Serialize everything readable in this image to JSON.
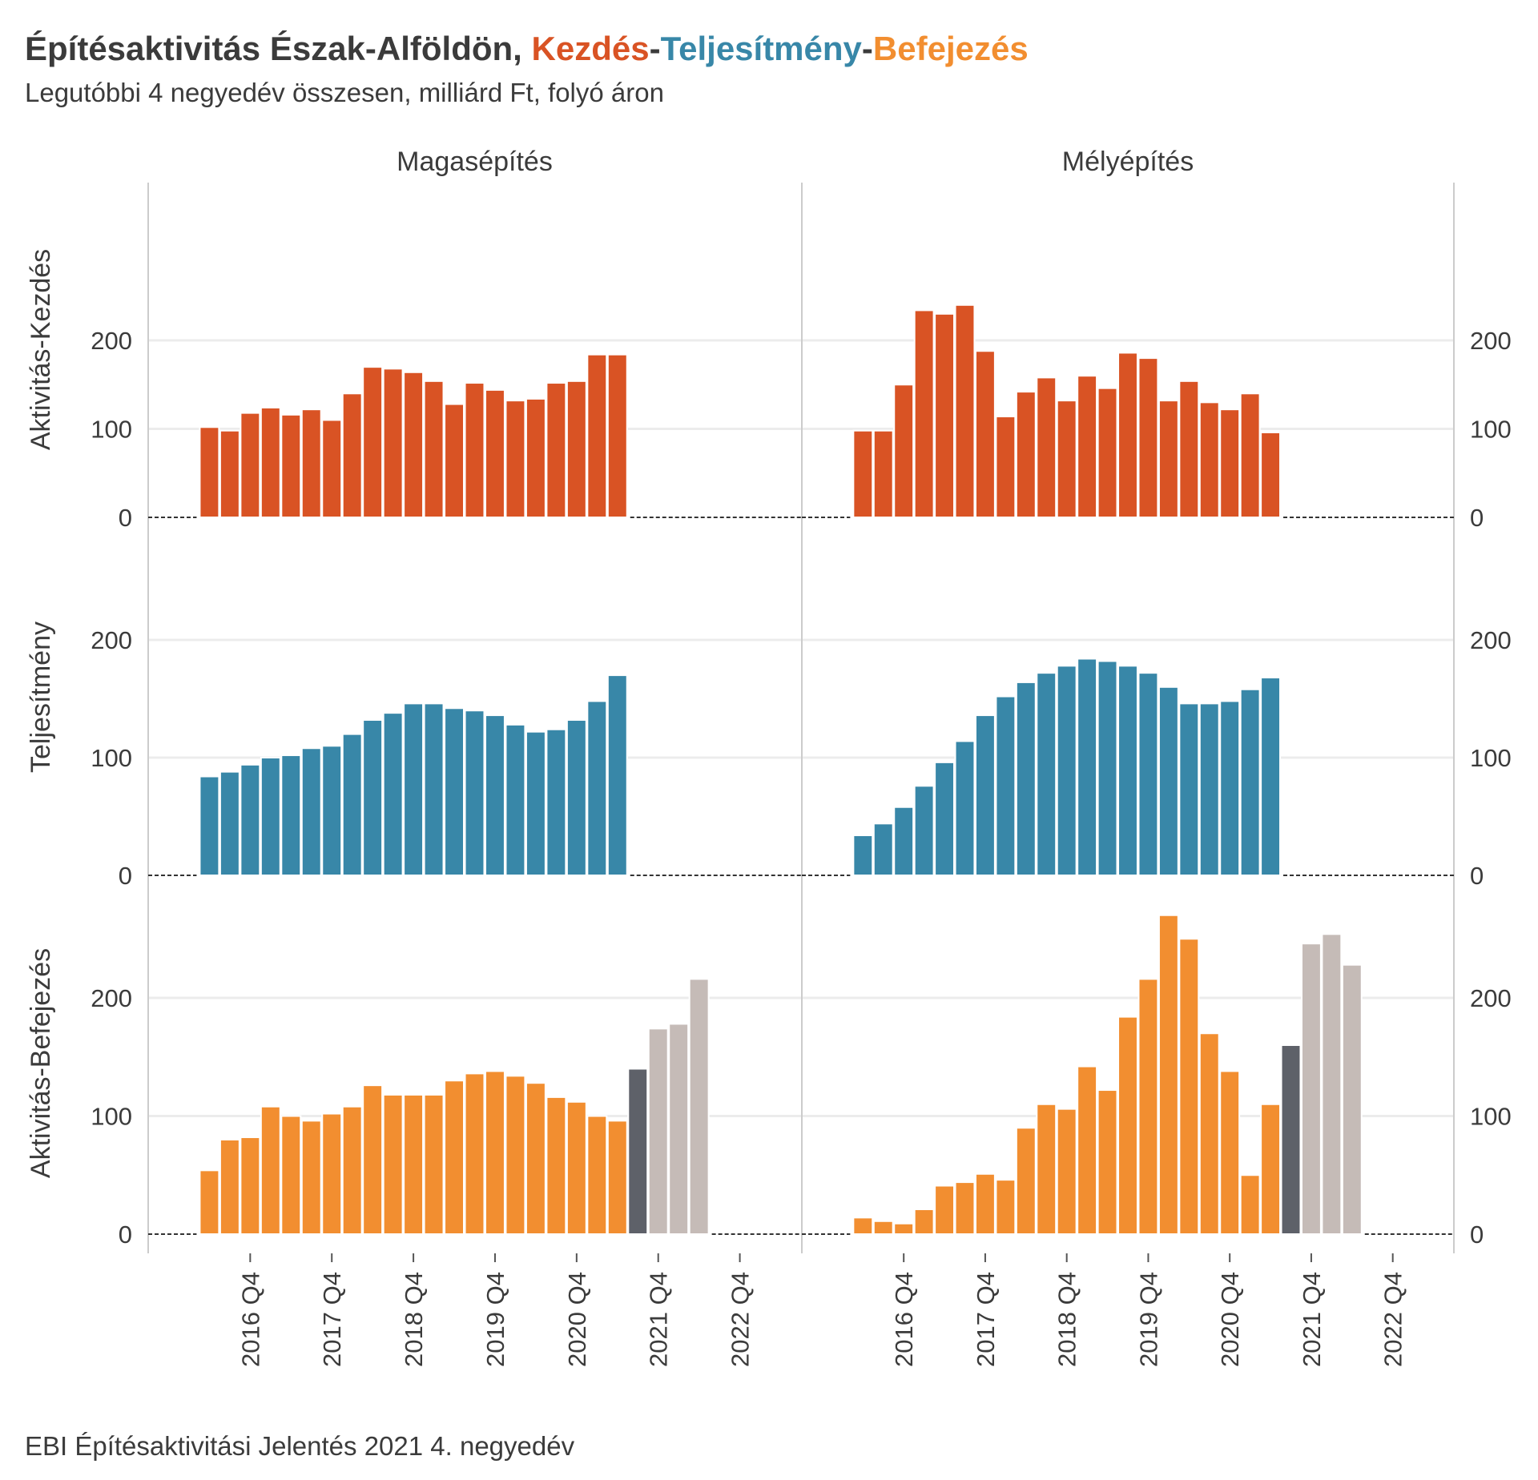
{
  "colors": {
    "kezdes": "#d95324",
    "teljesitmeny": "#3887a8",
    "befejezes": "#f28e30",
    "highlight": "#5e6169",
    "forecast": "#c5bbb7",
    "grid": "#ececec",
    "text": "#3b3b3b",
    "panel_divider": "#cccccc"
  },
  "title": {
    "prefix": "Építésaktivitás Észak-Alföldön, ",
    "part1": "Kezdés",
    "sep1": "-",
    "part2": "Teljesítmény",
    "sep2": "-",
    "part3": "Befejezés"
  },
  "subtitle": "Legutóbbi 4 negyedév összesen, milliárd Ft, folyó áron",
  "caption": "EBI Építésaktivitási Jelentés 2021 4. negyedév",
  "chart_data": {
    "type": "bar",
    "layout": "facet grid, 3 rows × 2 columns",
    "columns": [
      "Magasépítés",
      "Mélyépítés"
    ],
    "rows": [
      "Aktivitás-Kezdés",
      "Teljesítmény",
      "Aktivitás-Befejezés"
    ],
    "row_colors": [
      "#d95324",
      "#3887a8",
      "#f28e30"
    ],
    "x_tick_labels": [
      "2016 Q4",
      "2017 Q4",
      "2018 Q4",
      "2019 Q4",
      "2020 Q4",
      "2021 Q4",
      "2022 Q4"
    ],
    "x_tick_positions": [
      2,
      6,
      10,
      14,
      18,
      22,
      26
    ],
    "x_range": [
      -3,
      29
    ],
    "quarter_start": "2016 Q3",
    "y_ticks": [
      0,
      100,
      200
    ],
    "ylim": [
      -10,
      290
    ],
    "grid": true,
    "panels": [
      [
        {
          "start": 0,
          "values": [
            102,
            98,
            118,
            124,
            116,
            122,
            110,
            140,
            170,
            168,
            164,
            154,
            128,
            152,
            144,
            132,
            134,
            152,
            154,
            184,
            184
          ],
          "highlight_index": null,
          "forecast_from": null
        },
        {
          "start": 0,
          "values": [
            98,
            98,
            150,
            234,
            230,
            240,
            188,
            114,
            142,
            158,
            132,
            160,
            146,
            186,
            180,
            132,
            154,
            130,
            122,
            140,
            96
          ],
          "highlight_index": null,
          "forecast_from": null
        }
      ],
      [
        {
          "start": 0,
          "values": [
            84,
            88,
            94,
            100,
            102,
            108,
            110,
            120,
            132,
            138,
            146,
            146,
            142,
            140,
            136,
            128,
            122,
            124,
            132,
            148,
            170
          ],
          "highlight_index": null,
          "forecast_from": null
        },
        {
          "start": 0,
          "values": [
            34,
            44,
            58,
            76,
            96,
            114,
            136,
            152,
            164,
            172,
            178,
            184,
            182,
            178,
            172,
            160,
            146,
            146,
            148,
            158,
            168
          ],
          "highlight_index": null,
          "forecast_from": null
        }
      ],
      [
        {
          "start": 0,
          "values": [
            54,
            80,
            82,
            108,
            100,
            96,
            102,
            108,
            126,
            118,
            118,
            118,
            130,
            136,
            138,
            134,
            128,
            116,
            112,
            100,
            96,
            140,
            174,
            178,
            216
          ],
          "highlight_index": 21,
          "forecast_from": 22
        },
        {
          "start": 0,
          "values": [
            14,
            11,
            9,
            21,
            41,
            44,
            51,
            46,
            90,
            110,
            106,
            142,
            122,
            184,
            216,
            270,
            250,
            170,
            138,
            50,
            110,
            160,
            246,
            254,
            228
          ],
          "highlight_index": 21,
          "forecast_from": 22
        }
      ]
    ]
  }
}
